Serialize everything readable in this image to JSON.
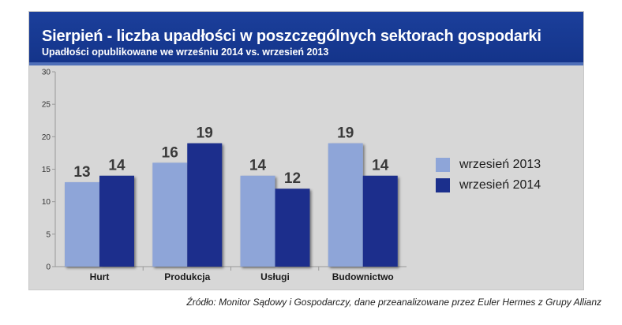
{
  "title": "Sierpień - liczba upadłości w poszczególnych sektorach gospodarki",
  "subtitle": "Upadłości opublikowane we wrześniu 2014 vs. wrzesień 2013",
  "source": "Źródło: Monitor Sądowy i Gospodarczy, dane przeanalizowane przez Euler Hermes z Grupy Allianz",
  "colors": {
    "header_bg": "#1b3f9b",
    "series_2013": "#8ea5d8",
    "series_2014": "#1b2f8c",
    "panel_bg": "#d7d7d7"
  },
  "chart_data": {
    "type": "bar",
    "title": "Sierpień - liczba upadłości w poszczególnych sektorach gospodarki",
    "subtitle": "Upadłości opublikowane we wrześniu 2014 vs. wrzesień 2013",
    "categories": [
      "Hurt",
      "Produkcja",
      "Usługi",
      "Budownictwo"
    ],
    "series": [
      {
        "name": "wrzesień 2013",
        "values": [
          13,
          16,
          14,
          19
        ],
        "color": "#8ea5d8"
      },
      {
        "name": "wrzesień 2014",
        "values": [
          14,
          19,
          12,
          14
        ],
        "color": "#1b2f8c"
      }
    ],
    "ylim": [
      0,
      30
    ],
    "yticks": [
      0,
      5,
      10,
      15,
      20,
      25,
      30
    ],
    "grid": false,
    "legend": "right"
  }
}
